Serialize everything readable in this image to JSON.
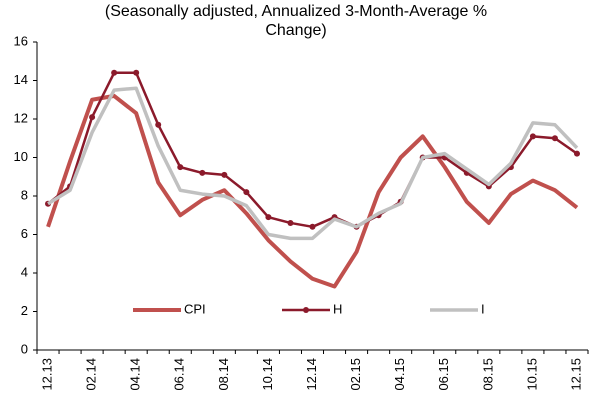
{
  "chart_data": {
    "type": "line",
    "title": "(Seasonally adjusted, Annualized 3-Month-Average % Change)",
    "categories": [
      "12.13",
      null,
      "02.14",
      null,
      "04.14",
      null,
      "06.14",
      null,
      "08.14",
      null,
      "10.14",
      null,
      "12.14",
      null,
      "02.15",
      null,
      "04.15",
      null,
      "06.15",
      null,
      "08.15",
      null,
      "10.15",
      null,
      "12.15"
    ],
    "series": [
      {
        "name": "CPI",
        "color": "#c0504d",
        "values": [
          6.4,
          9.8,
          13.0,
          13.2,
          12.3,
          8.7,
          7.0,
          7.8,
          8.3,
          7.1,
          5.7,
          4.6,
          3.7,
          3.3,
          5.1,
          8.2,
          10.0,
          11.1,
          9.5,
          7.7,
          6.6,
          8.1,
          8.8,
          8.3,
          7.4
        ]
      },
      {
        "name": "H",
        "color": "#8b1a2b",
        "values": [
          7.6,
          8.5,
          12.1,
          14.4,
          14.4,
          11.7,
          9.5,
          9.2,
          9.1,
          8.2,
          6.9,
          6.6,
          6.4,
          6.9,
          6.4,
          7.0,
          7.7,
          10.0,
          10.0,
          9.2,
          8.5,
          9.5,
          11.1,
          11.0,
          10.2
        ]
      },
      {
        "name": "I",
        "color": "#c0c0c0",
        "values": [
          7.6,
          8.3,
          11.3,
          13.5,
          13.6,
          10.6,
          8.3,
          8.1,
          8.0,
          7.5,
          6.0,
          5.8,
          5.8,
          6.8,
          6.4,
          7.1,
          7.6,
          10.0,
          10.2,
          9.4,
          8.6,
          9.7,
          11.8,
          11.7,
          10.5
        ]
      }
    ],
    "ylim": [
      0,
      16
    ],
    "yticks": [
      0,
      2,
      4,
      6,
      8,
      10,
      12,
      14,
      16
    ],
    "grid": false,
    "legend": "bottom"
  }
}
